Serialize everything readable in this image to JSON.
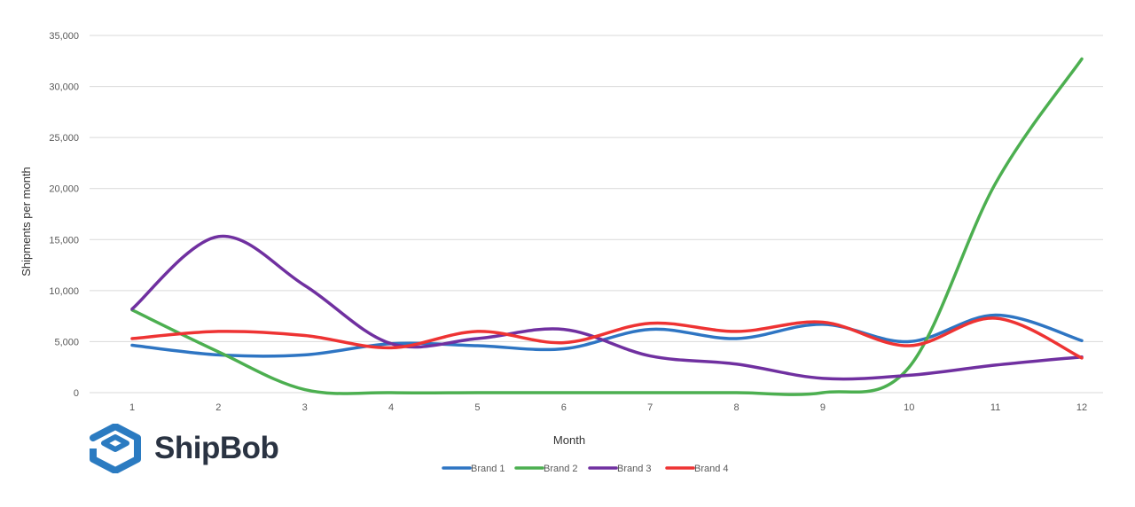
{
  "brand": {
    "name": "ShipBob",
    "logo_color": "#2b7bc1",
    "text_color": "#2a3342"
  },
  "chart_data": {
    "type": "line",
    "title": "",
    "xlabel": "Month",
    "ylabel": "Shipments per month",
    "x": [
      1,
      2,
      3,
      4,
      5,
      6,
      7,
      8,
      9,
      10,
      11,
      12
    ],
    "ylim": [
      0,
      35000
    ],
    "yticks": [
      0,
      5000,
      10000,
      15000,
      20000,
      25000,
      30000,
      35000
    ],
    "ytick_labels": [
      "0",
      "5,000",
      "10,000",
      "15,000",
      "20,000",
      "25,000",
      "30,000",
      "35,000"
    ],
    "grid": true,
    "smooth": true,
    "legend_position": "bottom",
    "series": [
      {
        "name": "Brand 1",
        "color": "#2e75c3",
        "values": [
          4650,
          3700,
          3700,
          4800,
          4600,
          4300,
          6200,
          5300,
          6700,
          5000,
          7600,
          5100
        ]
      },
      {
        "name": "Brand 2",
        "color": "#4caf50",
        "values": [
          8100,
          4000,
          300,
          0,
          0,
          0,
          0,
          0,
          0,
          2500,
          20500,
          32700
        ]
      },
      {
        "name": "Brand 3",
        "color": "#7030a0",
        "values": [
          8200,
          15300,
          10500,
          4800,
          5300,
          6200,
          3600,
          2800,
          1400,
          1700,
          2700,
          3500
        ]
      },
      {
        "name": "Brand 4",
        "color": "#ee3333",
        "values": [
          5300,
          6000,
          5600,
          4400,
          6000,
          4900,
          6800,
          6000,
          6900,
          4600,
          7300,
          3400
        ]
      }
    ]
  }
}
